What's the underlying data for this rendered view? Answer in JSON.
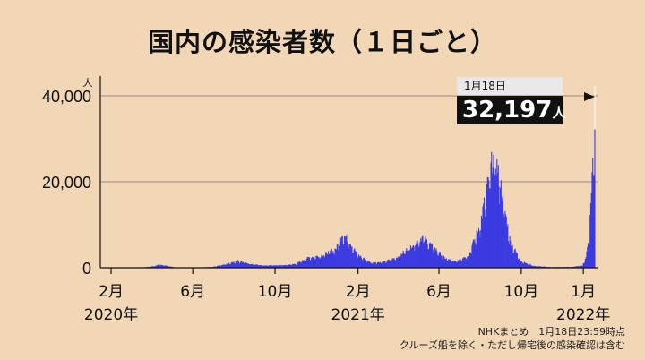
{
  "title": "国内の感染者数（１日ごと）",
  "callout": {
    "date": "1月18日",
    "value": "32,197",
    "unit": "人"
  },
  "notes": {
    "line1": "NHKまとめ　1月18日23:59時点",
    "line2": "クルーズ船を除く・ただし帰宅後の感染確認は含む"
  },
  "colors": {
    "background": "#f1d7b6",
    "bar": "#3b3be0",
    "grid": "#9a8a78",
    "axis": "#111111"
  },
  "chart_data": {
    "type": "bar",
    "title": "国内の感染者数（１日ごと）",
    "ylabel": "人",
    "ylim": [
      0,
      45000
    ],
    "yticks": [
      0,
      20000,
      40000
    ],
    "ytick_labels": [
      "0",
      "20,000",
      "40,000"
    ],
    "xlim": [
      "2020-01-16",
      "2022-01-22"
    ],
    "xticks": [
      {
        "date": "2020-02-01",
        "label": "2月",
        "sub": "2020年"
      },
      {
        "date": "2020-06-01",
        "label": "6月",
        "sub": ""
      },
      {
        "date": "2020-10-01",
        "label": "10月",
        "sub": ""
      },
      {
        "date": "2021-02-01",
        "label": "2月",
        "sub": "2021年"
      },
      {
        "date": "2021-06-01",
        "label": "6月",
        "sub": ""
      },
      {
        "date": "2021-10-01",
        "label": "10月",
        "sub": ""
      },
      {
        "date": "2022-01-01",
        "label": "1月",
        "sub": "2022年"
      }
    ],
    "series": [
      {
        "points": [
          [
            "2020-01-16",
            0
          ],
          [
            "2020-03-15",
            50
          ],
          [
            "2020-04-05",
            350
          ],
          [
            "2020-04-11",
            720
          ],
          [
            "2020-04-18",
            600
          ],
          [
            "2020-05-05",
            120
          ],
          [
            "2020-06-01",
            40
          ],
          [
            "2020-07-01",
            200
          ],
          [
            "2020-07-20",
            800
          ],
          [
            "2020-08-07",
            1600
          ],
          [
            "2020-08-25",
            900
          ],
          [
            "2020-09-15",
            550
          ],
          [
            "2020-10-15",
            600
          ],
          [
            "2020-11-01",
            900
          ],
          [
            "2020-11-20",
            2400
          ],
          [
            "2020-12-10",
            2900
          ],
          [
            "2020-12-31",
            4500
          ],
          [
            "2021-01-08",
            7900
          ],
          [
            "2021-01-16",
            6800
          ],
          [
            "2021-02-01",
            3000
          ],
          [
            "2021-02-20",
            1200
          ],
          [
            "2021-03-10",
            1300
          ],
          [
            "2021-04-01",
            2500
          ],
          [
            "2021-04-20",
            5000
          ],
          [
            "2021-05-08",
            7200
          ],
          [
            "2021-05-20",
            5400
          ],
          [
            "2021-06-10",
            2200
          ],
          [
            "2021-06-25",
            1500
          ],
          [
            "2021-07-15",
            3000
          ],
          [
            "2021-08-01",
            10000
          ],
          [
            "2021-08-13",
            20000
          ],
          [
            "2021-08-20",
            25800
          ],
          [
            "2021-08-28",
            23000
          ],
          [
            "2021-09-05",
            15000
          ],
          [
            "2021-09-15",
            6000
          ],
          [
            "2021-10-01",
            1500
          ],
          [
            "2021-10-20",
            400
          ],
          [
            "2021-11-15",
            150
          ],
          [
            "2021-12-15",
            200
          ],
          [
            "2021-12-31",
            500
          ],
          [
            "2022-01-05",
            2600
          ],
          [
            "2022-01-10",
            8000
          ],
          [
            "2022-01-14",
            22000
          ],
          [
            "2022-01-18",
            32197
          ]
        ]
      }
    ]
  }
}
